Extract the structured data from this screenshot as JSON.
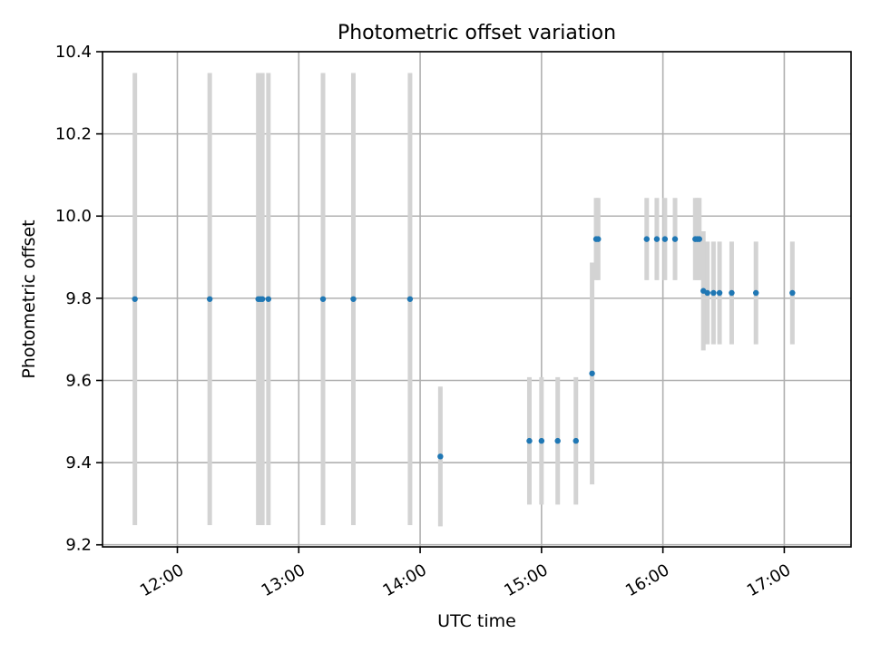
{
  "chart_data": {
    "type": "scatter",
    "title": "Photometric offset variation",
    "xlabel": "UTC time",
    "ylabel": "Photometric offset",
    "xlim": [
      "11:23",
      "17:33"
    ],
    "ylim": [
      9.195,
      10.4
    ],
    "x_ticks": [
      "12:00",
      "13:00",
      "14:00",
      "15:00",
      "16:00",
      "17:00"
    ],
    "y_ticks": [
      "9.2",
      "9.4",
      "9.6",
      "9.8",
      "10.0",
      "10.2",
      "10.4"
    ],
    "grid": true,
    "colors": {
      "points": "#1f77b4",
      "errorbars": "#d3d3d3",
      "grid": "#b0b0b0"
    },
    "points": [
      {
        "x": "11:39",
        "y": 9.798,
        "err": 0.55
      },
      {
        "x": "12:16",
        "y": 9.798,
        "err": 0.55
      },
      {
        "x": "12:40",
        "y": 9.798,
        "err": 0.55
      },
      {
        "x": "12:41",
        "y": 9.798,
        "err": 0.55
      },
      {
        "x": "12:42",
        "y": 9.798,
        "err": 0.55
      },
      {
        "x": "12:45",
        "y": 9.798,
        "err": 0.55
      },
      {
        "x": "13:12",
        "y": 9.798,
        "err": 0.55
      },
      {
        "x": "13:27",
        "y": 9.798,
        "err": 0.55
      },
      {
        "x": "13:55",
        "y": 9.798,
        "err": 0.55
      },
      {
        "x": "14:10",
        "y": 9.415,
        "err": 0.17
      },
      {
        "x": "14:54",
        "y": 9.453,
        "err": 0.155
      },
      {
        "x": "15:00",
        "y": 9.453,
        "err": 0.155
      },
      {
        "x": "15:08",
        "y": 9.453,
        "err": 0.155
      },
      {
        "x": "15:17",
        "y": 9.453,
        "err": 0.155
      },
      {
        "x": "15:25",
        "y": 9.617,
        "err": 0.27
      },
      {
        "x": "15:27",
        "y": 9.944,
        "err": 0.1
      },
      {
        "x": "15:28",
        "y": 9.944,
        "err": 0.1
      },
      {
        "x": "15:52",
        "y": 9.944,
        "err": 0.1
      },
      {
        "x": "15:57",
        "y": 9.944,
        "err": 0.1
      },
      {
        "x": "16:01",
        "y": 9.944,
        "err": 0.1
      },
      {
        "x": "16:06",
        "y": 9.944,
        "err": 0.1
      },
      {
        "x": "16:16",
        "y": 9.944,
        "err": 0.1
      },
      {
        "x": "16:17",
        "y": 9.944,
        "err": 0.1
      },
      {
        "x": "16:18",
        "y": 9.944,
        "err": 0.1
      },
      {
        "x": "16:20",
        "y": 9.818,
        "err": 0.145
      },
      {
        "x": "16:22",
        "y": 9.813,
        "err": 0.125
      },
      {
        "x": "16:25",
        "y": 9.813,
        "err": 0.125
      },
      {
        "x": "16:28",
        "y": 9.813,
        "err": 0.125
      },
      {
        "x": "16:34",
        "y": 9.813,
        "err": 0.125
      },
      {
        "x": "16:46",
        "y": 9.813,
        "err": 0.125
      },
      {
        "x": "17:04",
        "y": 9.813,
        "err": 0.125
      }
    ]
  }
}
